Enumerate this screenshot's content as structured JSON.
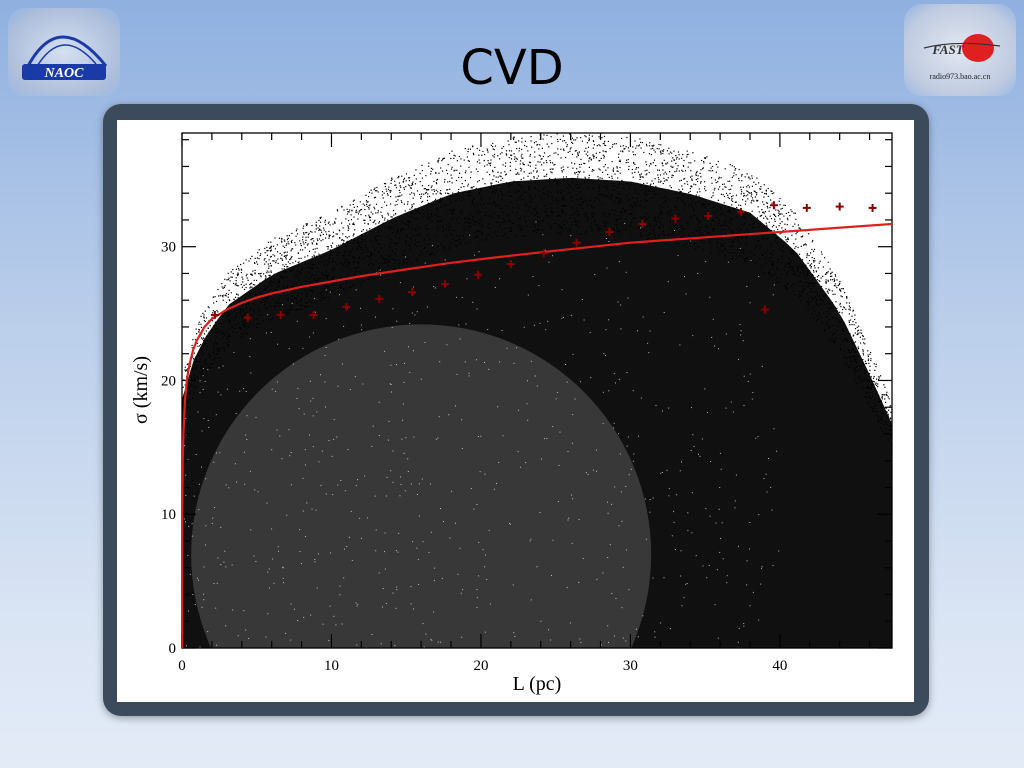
{
  "slide": {
    "title": "CVD",
    "logo_left_text": "NAOC",
    "logo_right_text": "radio973.bao.ac.cn",
    "logo_right_mark": "FAST"
  },
  "colors": {
    "fit_line": "#e02020",
    "binned_points": "#8b0000",
    "scatter": "#000000",
    "frame": "#3c4b5c"
  },
  "chart_data": {
    "type": "scatter",
    "title": "",
    "xlabel": "L (pc)",
    "ylabel": "σ (km/s)",
    "xlim": [
      0,
      47.5
    ],
    "ylim": [
      0,
      38.5
    ],
    "x_ticks": [
      0,
      10,
      20,
      30,
      40
    ],
    "y_ticks": [
      0,
      10,
      20,
      30
    ],
    "x_tick_labels": [
      "0",
      "10",
      "20",
      "30",
      "40"
    ],
    "y_tick_labels": [
      "0",
      "10",
      "20",
      "30"
    ],
    "grid": false,
    "series": [
      {
        "kind": "binned-mean-markers",
        "marker": "+",
        "x": [
          2.2,
          4.4,
          6.6,
          8.8,
          11.0,
          13.2,
          15.4,
          17.6,
          19.8,
          22.0,
          24.2,
          26.4,
          28.6,
          30.8,
          33.0,
          35.2,
          37.4,
          39.6,
          41.8,
          44.0,
          46.2
        ],
        "y": [
          24.9,
          24.7,
          24.9,
          24.9,
          25.5,
          26.1,
          26.6,
          27.2,
          27.9,
          28.7,
          29.5,
          30.3,
          31.1,
          31.7,
          32.1,
          32.3,
          32.6,
          33.1,
          32.9,
          33.0,
          32.9
        ]
      },
      {
        "kind": "fit-curve",
        "x": [
          0.0,
          0.02,
          0.05,
          0.1,
          0.2,
          0.35,
          0.5,
          0.75,
          1.0,
          1.5,
          2,
          3,
          4,
          5,
          6,
          8,
          10,
          12,
          15,
          18,
          21,
          25,
          30,
          35,
          40,
          45,
          47.5
        ],
        "y": [
          0.0,
          10.5,
          14.0,
          16.2,
          18.6,
          20.2,
          21.2,
          22.3,
          23.0,
          24.0,
          24.6,
          25.3,
          25.8,
          26.2,
          26.5,
          27.0,
          27.4,
          27.8,
          28.3,
          28.8,
          29.2,
          29.7,
          30.3,
          30.7,
          31.1,
          31.5,
          31.7
        ]
      },
      {
        "kind": "outlier-markers",
        "marker": "+",
        "x": [
          39.0
        ],
        "y": [
          25.3
        ]
      },
      {
        "kind": "point-cloud",
        "upper_envelope": {
          "x": [
            0,
            1,
            3,
            6,
            10,
            14,
            18,
            22,
            26,
            30,
            34,
            38,
            41,
            44,
            46,
            47.5
          ],
          "y": [
            20,
            24,
            27.5,
            30,
            32,
            34.5,
            36.5,
            37.5,
            37.8,
            37.5,
            36.5,
            35,
            32,
            27,
            22,
            18
          ]
        }
      }
    ]
  }
}
